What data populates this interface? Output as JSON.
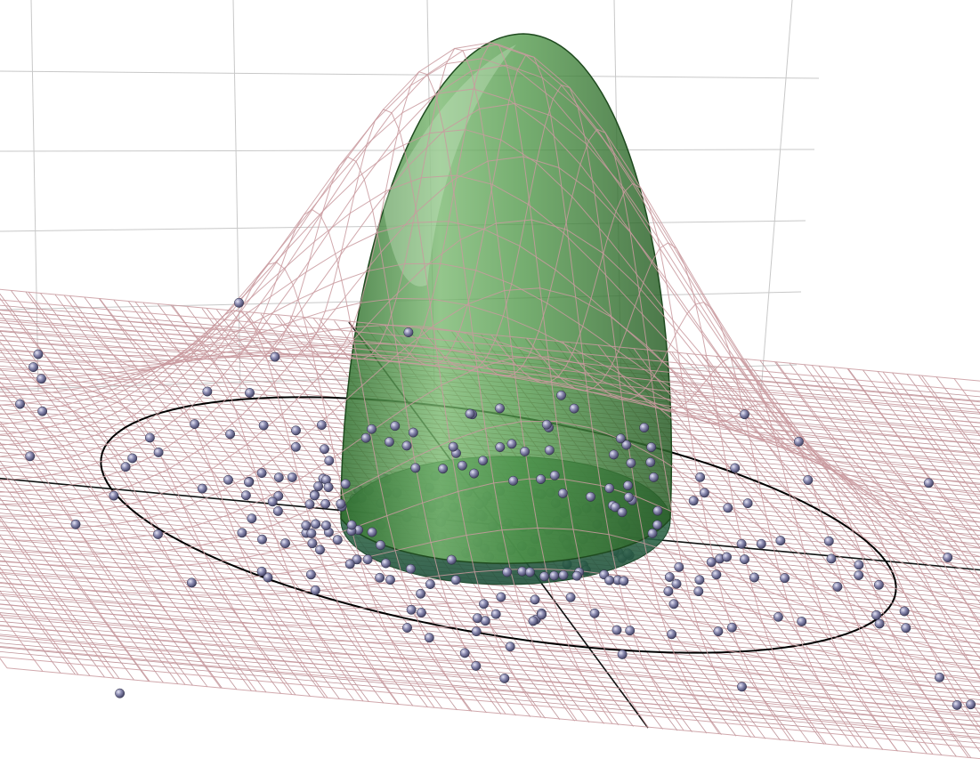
{
  "chart_data": {
    "type": "surface",
    "title": "",
    "xlabel": "",
    "ylabel": "",
    "zlabel": "",
    "grid": true,
    "legend": "none",
    "series": [
      {
        "kind": "gaussian-surface-mesh",
        "sigma_x": 1.0,
        "sigma_y": 1.0,
        "amplitude": 1.0,
        "color": "#c99a9f"
      },
      {
        "kind": "gaussian-ellipsoid",
        "color": "#3f8a3c",
        "opacity": 0.75
      },
      {
        "kind": "confidence-ellipse",
        "color": "#000000"
      },
      {
        "kind": "scatter-points",
        "color": "#7a7aa0",
        "count": 300
      }
    ],
    "floor_grid_color": "#b88a8f",
    "back_grid_color": "#c8c8c8"
  }
}
